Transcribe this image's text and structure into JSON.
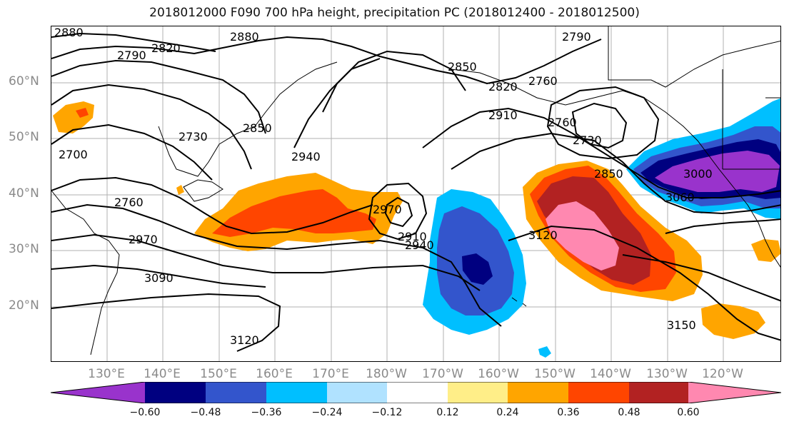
{
  "title": "2018012000 F090 700 hPa height, precipitation PC (2018012400 - 2018012500)",
  "lat_labels": [
    "60°N",
    "50°N",
    "40°N",
    "30°N",
    "20°N"
  ],
  "lon_labels": [
    "130°E",
    "140°E",
    "150°E",
    "160°E",
    "170°E",
    "180°W",
    "170°W",
    "160°W",
    "150°W",
    "140°W",
    "130°W",
    "120°W"
  ],
  "contour_labels": [
    "2880",
    "2820",
    "2790",
    "2880",
    "2790",
    "2760",
    "2820",
    "2850",
    "2910",
    "2730",
    "2700",
    "2850",
    "2940",
    "2760",
    "2730",
    "2760",
    "2850",
    "3000",
    "3060",
    "2970",
    "2910",
    "2940",
    "3120",
    "2970",
    "3090",
    "3120",
    "3150"
  ],
  "colorbar": {
    "ticks": [
      "−0.60",
      "−0.48",
      "−0.36",
      "−0.24",
      "−0.12",
      "0.12",
      "0.24",
      "0.36",
      "0.48",
      "0.60"
    ],
    "colors": [
      "#9933cc",
      "#000080",
      "#3355cc",
      "#00bfff",
      "#b0e2ff",
      "#ffffff",
      "#ffee88",
      "#ffa500",
      "#ff4500",
      "#b22222",
      "#ff88b0"
    ]
  }
}
